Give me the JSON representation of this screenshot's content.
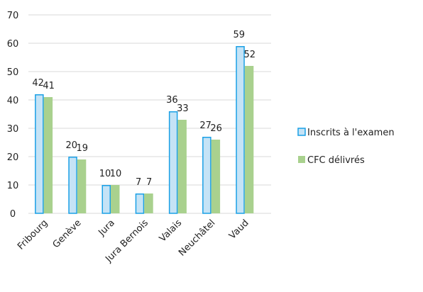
{
  "chart_data": {
    "type": "bar",
    "categories": [
      "Fribourg",
      "Genève",
      "Jura",
      "Jura Bernois",
      "Valais",
      "Neuchâtel",
      "Vaud"
    ],
    "series": [
      {
        "name": "Inscrits à l'examen",
        "values": [
          42,
          20,
          10,
          7,
          36,
          27,
          59
        ],
        "fill": "#c5e3f6",
        "stroke": "#1aa0e6"
      },
      {
        "name": "CFC délivrés",
        "values": [
          41,
          19,
          10,
          7,
          33,
          26,
          52
        ],
        "fill": "#a9d18e",
        "stroke": "#a9d18e"
      }
    ],
    "ylim": [
      0,
      70
    ],
    "yticks": [
      0,
      10,
      20,
      30,
      40,
      50,
      60,
      70
    ],
    "grid": true,
    "gridColor": "#d9d9d9",
    "legend": "right",
    "data_labels": true
  }
}
